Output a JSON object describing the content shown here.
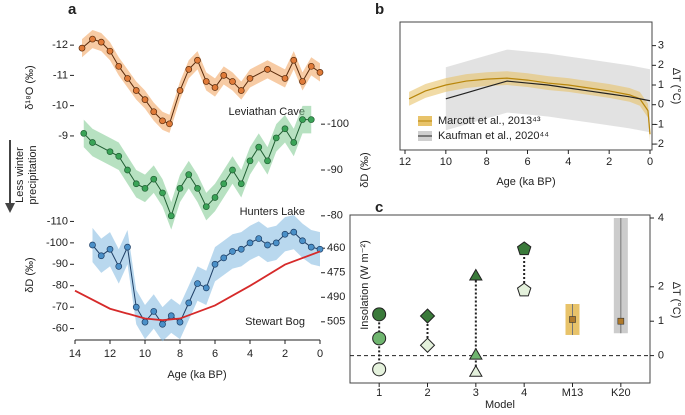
{
  "chart_data": [
    {
      "type": "multi-axis-line",
      "label": "a",
      "x_label": "Age (ka BP)",
      "xlim": [
        14,
        0
      ],
      "xticks": [
        14,
        12,
        10,
        8,
        6,
        4,
        2,
        0
      ],
      "annotation_lines": [
        "Less winter",
        "precipitation"
      ],
      "axes": [
        {
          "label": "δ¹⁸O (‰)",
          "side": "left",
          "inverted": true,
          "ylim": [
            -12.5,
            -8.7
          ],
          "yticks": [
            -12,
            -11,
            -10,
            -9
          ]
        },
        {
          "label": "δD (‰)",
          "side": "right",
          "inverted": true,
          "ylim": [
            -102,
            -78
          ],
          "yticks": [
            -100,
            -90,
            -80
          ]
        },
        {
          "label": "δD (‰)",
          "side": "left",
          "inverted": true,
          "ylim": [
            -113,
            -57
          ],
          "yticks": [
            -110,
            -100,
            -90,
            -80,
            -70,
            -60
          ]
        },
        {
          "label": "Insolation (W m⁻²)",
          "side": "right",
          "inverted": true,
          "ylim": [
            455,
            510
          ],
          "yticks": [
            460,
            475,
            490,
            505
          ]
        }
      ],
      "series": [
        {
          "name": "Leviathan Cave",
          "axis": 0,
          "color": "#5a2a0a",
          "marker_color": "#e07b39",
          "band_color": "#f0a05a",
          "error": 0.3,
          "x": [
            13.6,
            13,
            12.5,
            12,
            11.5,
            11,
            10.5,
            10,
            9.5,
            9,
            8.6,
            8,
            7.5,
            7,
            6.5,
            6,
            5.5,
            5,
            4.5,
            4,
            3,
            2,
            1.5,
            1,
            0.5,
            0
          ],
          "values": [
            -11.9,
            -12.2,
            -12.1,
            -11.8,
            -11.3,
            -10.9,
            -10.5,
            -10.2,
            -9.8,
            -9.5,
            -9.4,
            -10.5,
            -11.2,
            -11.5,
            -10.8,
            -10.6,
            -11,
            -10.8,
            -10.5,
            -10.9,
            -11.2,
            -10.9,
            -11.5,
            -10.8,
            -11.3,
            -11.1
          ]
        },
        {
          "name": "Hunters Lake",
          "axis": 1,
          "color": "#1f5e32",
          "marker_color": "#3aa357",
          "band_color": "#7cc98e",
          "error": 3,
          "x": [
            13.5,
            13,
            12,
            11.5,
            11,
            10.5,
            10,
            9.5,
            9,
            8.5,
            8,
            7.5,
            7,
            6.5,
            6,
            5.5,
            5,
            4.5,
            4,
            3.5,
            3,
            2.5,
            2,
            1.5,
            1,
            0.5
          ],
          "values": [
            -98,
            -96,
            -94,
            -93,
            -90,
            -87,
            -86,
            -88,
            -85,
            -80,
            -86,
            -89,
            -86,
            -82,
            -84,
            -87,
            -90,
            -87,
            -92,
            -95,
            -92,
            -97,
            -99,
            -96,
            -101,
            -101
          ]
        },
        {
          "name": "Stewart Bog",
          "axis": 2,
          "color": "#1e3f66",
          "marker_color": "#4a90c8",
          "band_color": "#7fb8e0",
          "error": 8,
          "x": [
            13,
            12.5,
            12,
            11.5,
            11,
            10.5,
            10,
            9.5,
            9,
            8.5,
            8,
            7.5,
            7,
            6.5,
            6,
            5.5,
            5,
            4.5,
            4,
            3.5,
            3,
            2.5,
            2,
            1.5,
            1,
            0.5,
            0
          ],
          "values": [
            -99,
            -94,
            -97,
            -89,
            -98,
            -70,
            -63,
            -68,
            -62,
            -66,
            -63,
            -72,
            -81,
            -79,
            -90,
            -93,
            -96,
            -97,
            -100,
            -102,
            -99,
            -100,
            -104,
            -105,
            -101,
            -98,
            -97
          ]
        },
        {
          "name": "Insolation",
          "axis": 3,
          "color": "#d62a2a",
          "x": [
            14,
            12,
            10,
            9,
            8,
            6,
            4,
            2,
            0
          ],
          "values": [
            486,
            497,
            503,
            504,
            503,
            495,
            483,
            470,
            462
          ]
        }
      ]
    },
    {
      "type": "band-line",
      "label": "b",
      "x_label": "Age (ka BP)",
      "y_label": "ΔT (°C)",
      "xlim": [
        12,
        0
      ],
      "xticks": [
        12,
        10,
        8,
        6,
        4,
        2,
        0
      ],
      "ylim": [
        -2.3,
        4.2
      ],
      "yticks": [
        -2,
        -1,
        0,
        1,
        2,
        3
      ],
      "legend": "lower left",
      "series": [
        {
          "name": "Marcott et al., 2013⁴³",
          "color": "#b8860b",
          "band_color": "#e8c36a",
          "error": 0.35,
          "x": [
            11.8,
            11,
            10,
            9,
            8,
            7,
            6,
            5,
            4,
            3,
            2,
            1,
            0.5,
            0.1,
            0
          ],
          "values": [
            0.3,
            0.7,
            1.0,
            1.2,
            1.3,
            1.35,
            1.25,
            1.1,
            1.0,
            0.85,
            0.7,
            0.5,
            0.3,
            -0.3,
            -1.5
          ]
        },
        {
          "name": "Kaufman et al., 2020⁴⁴",
          "color": "#222222",
          "band_color": "#cfcfcf",
          "error": 1.6,
          "x": [
            10,
            9,
            8,
            7,
            6,
            5,
            4,
            3,
            2,
            1,
            0
          ],
          "values": [
            0.3,
            0.6,
            0.9,
            1.2,
            1.1,
            1.0,
            0.85,
            0.7,
            0.55,
            0.4,
            0.2
          ]
        }
      ]
    },
    {
      "type": "dot-range",
      "label": "c",
      "x_label": "Model",
      "y_label": "ΔT (°C)",
      "ylim": [
        -1,
        4
      ],
      "yticks": [
        0,
        1,
        2,
        4
      ],
      "categories": [
        "1",
        "2",
        "3",
        "4",
        "M13",
        "K20"
      ],
      "category_colors": [
        "#c0392b",
        "#c0392b",
        "#c0392b",
        "#c0392b",
        "#888888",
        "#888888"
      ],
      "markers": [
        "circle",
        "diamond",
        "triangle",
        "pentagon",
        "square",
        "square"
      ],
      "series": [
        {
          "color": "#3a7a3a",
          "values": [
            1.2,
            1.15,
            2.3,
            3.1,
            null,
            null
          ]
        },
        {
          "color": "#6fb56f",
          "values": [
            0.5,
            null,
            0,
            null,
            null,
            null
          ]
        },
        {
          "color": "#e4f1dc",
          "values": [
            -0.4,
            0.3,
            -0.5,
            1.9,
            null,
            null
          ]
        }
      ],
      "reference": {
        "colors": [
          null,
          null,
          null,
          null,
          "#e8c36a",
          "#cccccc"
        ],
        "marker_color": "#b07a2a",
        "values": [
          null,
          null,
          null,
          null,
          1.05,
          1.0
        ],
        "lower": [
          null,
          null,
          null,
          null,
          0.6,
          0.65
        ],
        "upper": [
          null,
          null,
          null,
          null,
          1.5,
          4
        ]
      }
    }
  ]
}
